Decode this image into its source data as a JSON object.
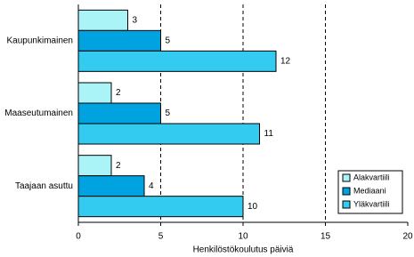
{
  "chart_data": {
    "type": "hbar",
    "x_label": "Henkilöstökoulutus päiviä",
    "categories": [
      "Kaupunkimainen",
      "Maaseutumainen",
      "Taajaan asuttu"
    ],
    "series": [
      {
        "name": "Alakvartiili",
        "color": "#aaf4f8",
        "values": [
          3,
          2,
          2
        ]
      },
      {
        "name": "Mediaani",
        "color": "#00a3e0",
        "values": [
          5,
          5,
          4
        ]
      },
      {
        "name": "Yläkvartiili",
        "color": "#33ccf0",
        "values": [
          12,
          11,
          10
        ]
      }
    ],
    "xlim": [
      0,
      20
    ],
    "xticks": [
      0,
      5,
      10,
      15,
      20
    ],
    "grid": true,
    "legend": "lower right"
  }
}
